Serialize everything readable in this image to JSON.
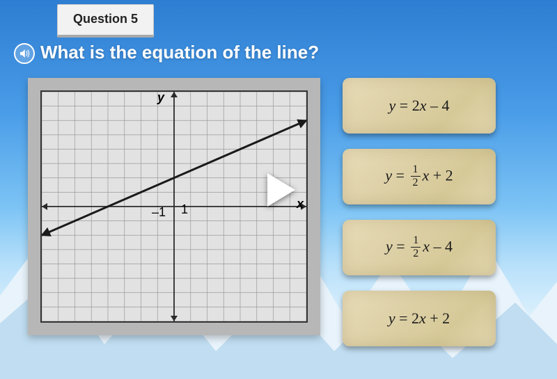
{
  "header": {
    "question_label": "Question 5"
  },
  "prompt": {
    "text": "What is the equation of the line?"
  },
  "graph": {
    "type": "line",
    "x_range": [
      -8,
      8
    ],
    "y_range": [
      -8,
      8
    ],
    "grid_step": 1,
    "grid_color": "#9a9a9a",
    "axis_color": "#2a2a2a",
    "axis_width": 1.8,
    "background_color": "#e2e2e2",
    "frame_background": "#b7b7b7",
    "border_color": "#333333",
    "y_label": "y",
    "x_label": "x",
    "tick_labels": {
      "neg1": "–1",
      "pos1": "1"
    },
    "line": {
      "slope": 0.5,
      "intercept": 2,
      "color": "#1a1a1a",
      "width": 3,
      "points_visible": [
        [
          -8,
          -2
        ],
        [
          8,
          6
        ]
      ]
    }
  },
  "answers": {
    "options": [
      {
        "id": "opt-a",
        "latex": "y = 2x - 4",
        "display_num": null,
        "display_den": null,
        "prefix": "y = 2",
        "suffix": "x – 4",
        "has_frac": false
      },
      {
        "id": "opt-b",
        "latex": "y = 1/2 x + 2",
        "display_num": "1",
        "display_den": "2",
        "prefix": "y = ",
        "suffix": "x + 2",
        "has_frac": true
      },
      {
        "id": "opt-c",
        "latex": "y = 1/2 x - 4",
        "display_num": "1",
        "display_den": "2",
        "prefix": "y = ",
        "suffix": "x – 4",
        "has_frac": true
      },
      {
        "id": "opt-d",
        "latex": "y = 2x + 2",
        "display_num": null,
        "display_den": null,
        "prefix": "y = 2",
        "suffix": "x + 2",
        "has_frac": false
      }
    ],
    "card_bg_colors": [
      "#e8dcb8",
      "#ddd0a6",
      "#d6c998"
    ],
    "text_color": "#1a1a1a",
    "fontsize": 22
  },
  "colors": {
    "sky_top": "#2d7dd2",
    "sky_mid": "#7dc4f5",
    "sky_bot": "#f4fbff",
    "mountain_light": "#e8f3fb",
    "mountain_shadow": "#b9d8ee",
    "tab_bg": "#f2f2f2",
    "tab_text": "#222222"
  },
  "icons": {
    "audio": "speaker-icon",
    "play": "play-icon"
  }
}
